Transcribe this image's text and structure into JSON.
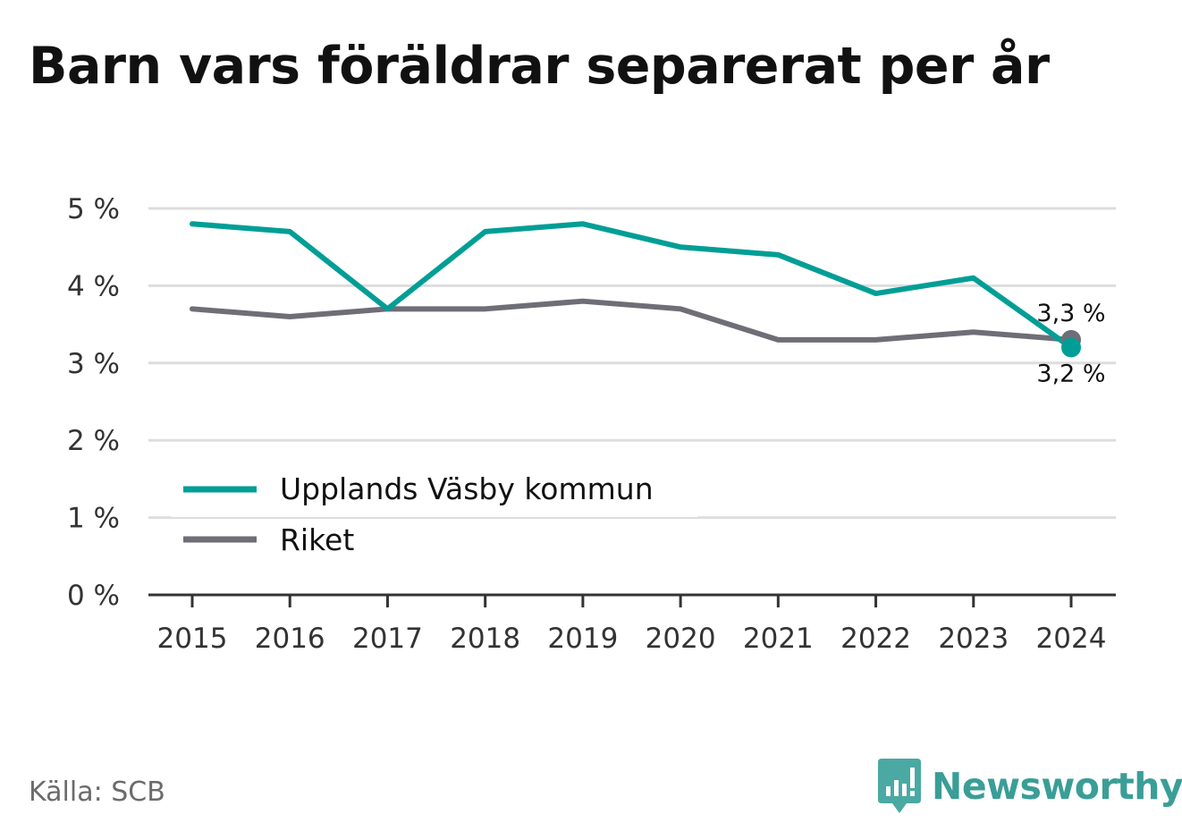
{
  "title": "Barn vars föräldrar separerat per år",
  "source": "Källa: SCB",
  "brand": {
    "name": "Newsworthy",
    "icon": "newsworthy-logo-icon"
  },
  "colors": {
    "municipality": "#009e96",
    "nation": "#6e6e76",
    "grid": "#dddddd",
    "axis": "#333333"
  },
  "chart_data": {
    "type": "line",
    "x": [
      "2015",
      "2016",
      "2017",
      "2018",
      "2019",
      "2020",
      "2021",
      "2022",
      "2023",
      "2024"
    ],
    "series": [
      {
        "name": "Upplands Väsby kommun",
        "values": [
          4.8,
          4.7,
          3.7,
          4.7,
          4.8,
          4.5,
          4.4,
          3.9,
          4.1,
          3.2
        ]
      },
      {
        "name": "Riket",
        "values": [
          3.7,
          3.6,
          3.7,
          3.7,
          3.8,
          3.7,
          3.3,
          3.3,
          3.4,
          3.3
        ]
      }
    ],
    "yticks": [
      "0 %",
      "1 %",
      "2 %",
      "3 %",
      "4 %",
      "5 %"
    ],
    "ylim": [
      0,
      5
    ],
    "end_labels": [
      "3,2 %",
      "3,3 %"
    ],
    "grid": true,
    "legend": "bottom-left"
  }
}
